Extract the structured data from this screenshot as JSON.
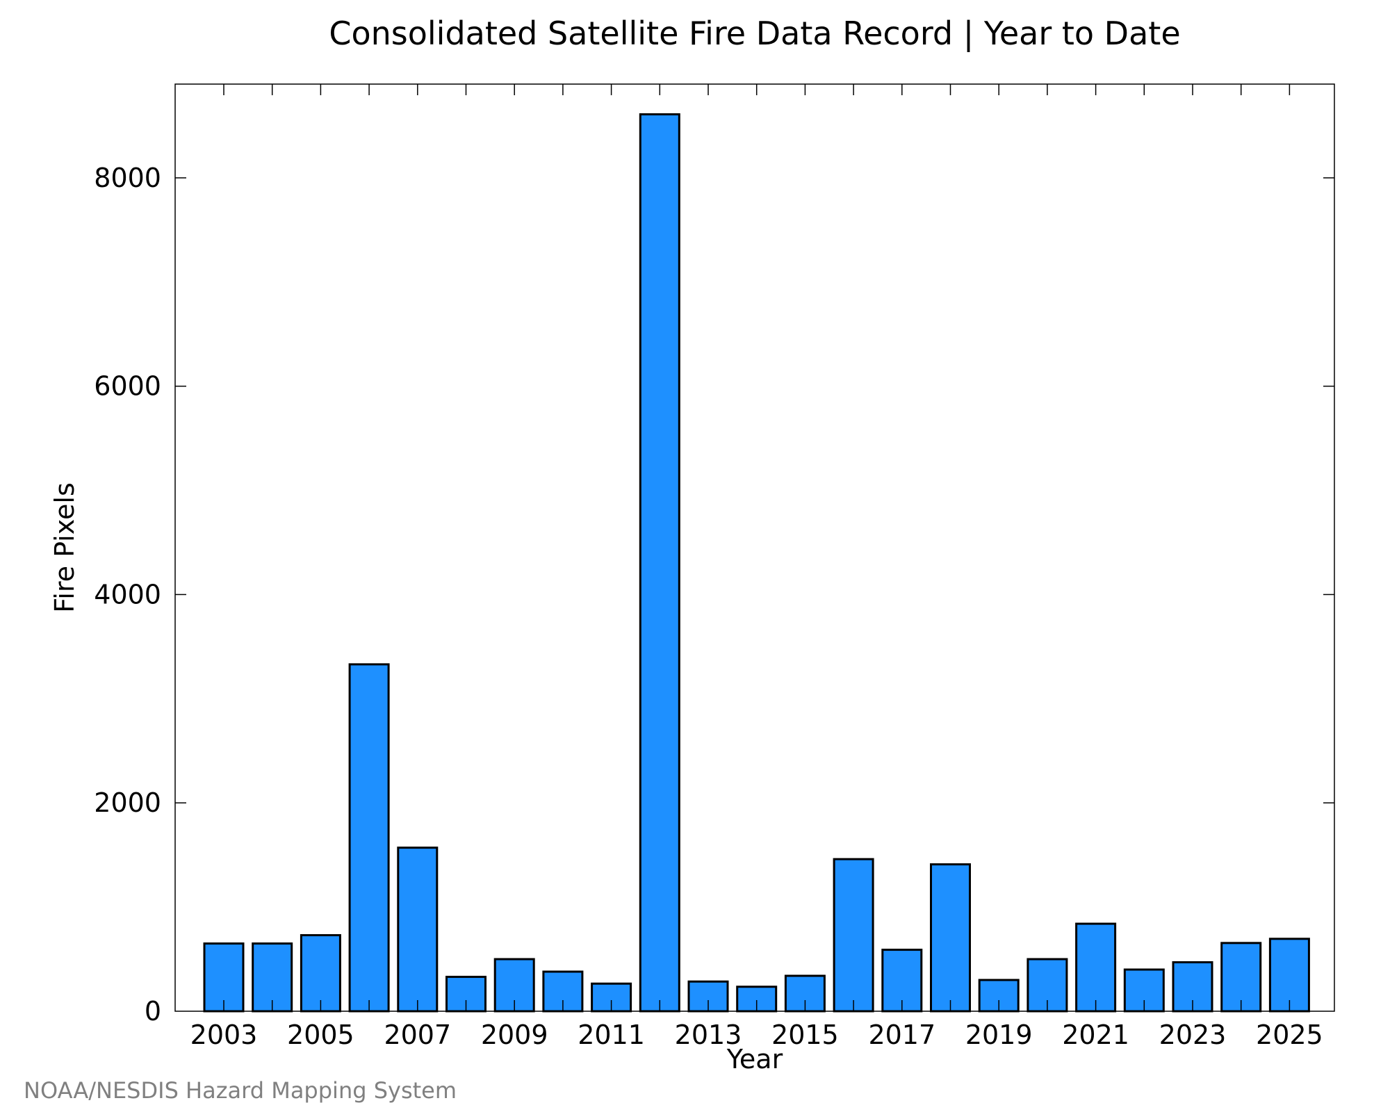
{
  "colors": {
    "bar_fill": "#1E90FF",
    "bar_stroke": "#000000",
    "axis": "#000000",
    "source_text": "#808080",
    "background": "#FFFFFF"
  },
  "source_note": "NOAA/NESDIS Hazard Mapping System",
  "chart_data": {
    "type": "bar",
    "title": "Consolidated Satellite Fire Data Record | Year to Date",
    "xlabel": "Year",
    "ylabel": "Fire Pixels",
    "ylim": [
      0,
      8900
    ],
    "yticks": [
      0,
      2000,
      4000,
      6000,
      8000
    ],
    "x_tick_labels": [
      "2003",
      "2005",
      "2007",
      "2009",
      "2011",
      "2013",
      "2015",
      "2017",
      "2019",
      "2021",
      "2023",
      "2025"
    ],
    "grid": false,
    "legend": "none",
    "categories": [
      "2003",
      "2004",
      "2005",
      "2006",
      "2007",
      "2008",
      "2009",
      "2010",
      "2011",
      "2012",
      "2013",
      "2014",
      "2015",
      "2016",
      "2017",
      "2018",
      "2019",
      "2020",
      "2021",
      "2022",
      "2023",
      "2024",
      "2025"
    ],
    "values": [
      650,
      650,
      730,
      3330,
      1570,
      330,
      500,
      380,
      265,
      8610,
      285,
      235,
      340,
      1460,
      590,
      1410,
      300,
      500,
      840,
      400,
      470,
      655,
      695
    ]
  }
}
